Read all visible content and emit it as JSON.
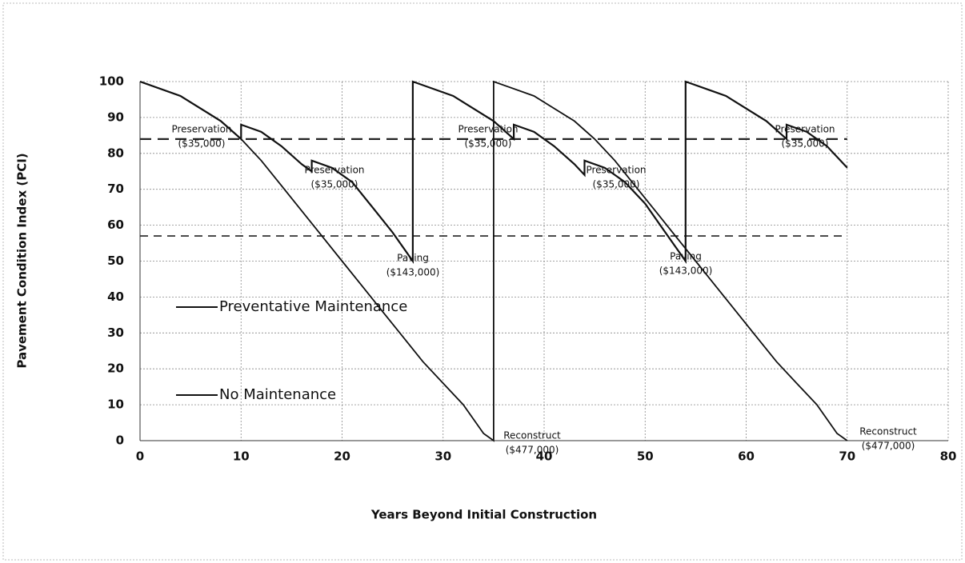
{
  "chart_data": {
    "type": "line",
    "xlabel": "Years Beyond Initial Construction",
    "ylabel": "Pavement Condition Index (PCI)",
    "xlim": [
      0,
      80
    ],
    "xticks": [
      0,
      10,
      20,
      30,
      40,
      50,
      60,
      70,
      80
    ],
    "ylim": [
      0,
      100
    ],
    "yticks": [
      0,
      10,
      20,
      30,
      40,
      50,
      60,
      70,
      80,
      90,
      100
    ],
    "grid": true,
    "legend": "left",
    "series": [
      {
        "name": "Preventative Maintenance",
        "color": "#111111",
        "x": [
          0,
          4,
          8,
          10,
          10,
          12,
          14,
          16,
          17,
          17,
          19,
          21,
          23,
          25,
          27,
          27,
          31,
          35,
          37,
          37,
          39,
          41,
          43,
          44,
          44,
          46,
          48,
          50,
          52,
          54,
          54,
          58,
          62,
          64,
          64,
          66,
          68,
          70
        ],
        "values": [
          100,
          96,
          89,
          84,
          88,
          86,
          82,
          77,
          75,
          78,
          76,
          72,
          65,
          58,
          50,
          100,
          96,
          89,
          84,
          88,
          86,
          82,
          77,
          74,
          78,
          76,
          72,
          66,
          58,
          50,
          100,
          96,
          89,
          84,
          88,
          86,
          82,
          76
        ]
      },
      {
        "name": "No Maintenance",
        "color": "#111111",
        "x": [
          0,
          4,
          8,
          10,
          12,
          14,
          16,
          18,
          20,
          22,
          24,
          26,
          28,
          30,
          32,
          34,
          35,
          35,
          39,
          43,
          45,
          47,
          49,
          51,
          53,
          55,
          57,
          59,
          61,
          63,
          65,
          67,
          69,
          70
        ],
        "values": [
          100,
          96,
          89,
          84,
          78,
          71,
          64,
          57,
          50,
          43,
          36,
          29,
          22,
          16,
          10,
          2,
          0,
          100,
          96,
          89,
          84,
          78,
          71,
          64,
          57,
          50,
          43,
          36,
          29,
          22,
          16,
          10,
          2,
          0
        ]
      }
    ],
    "reference_lines": [
      84,
      57
    ],
    "annotations": [
      [
        "Preservation",
        "($35,000)"
      ],
      [
        "Preservation",
        "($35,000)"
      ],
      [
        "Paving",
        "($143,000)"
      ],
      [
        "Preservation",
        "($35,000)"
      ],
      [
        "Reconstruct",
        "($477,000)"
      ],
      [
        "Preservation",
        "($35,000)"
      ],
      [
        "Paving",
        "($143,000)"
      ],
      [
        "Preservation",
        "($35,000)"
      ],
      [
        "Reconstruct",
        "($477,000)"
      ]
    ]
  }
}
